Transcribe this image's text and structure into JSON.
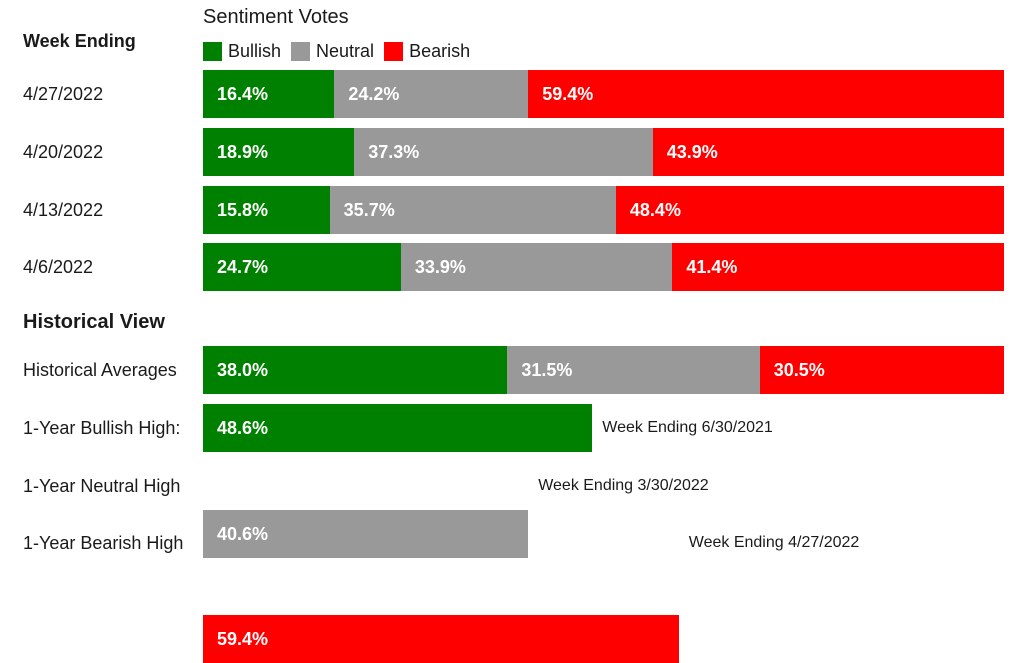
{
  "header": {
    "week_label": "Week Ending"
  },
  "legend": {
    "title": "Sentiment Votes",
    "items": [
      {
        "label": "Bullish",
        "color": "#008000"
      },
      {
        "label": "Neutral",
        "color": "#999999"
      },
      {
        "label": "Bearish",
        "color": "#ff0000"
      }
    ]
  },
  "historical": {
    "title": "Historical View"
  },
  "chart_data": {
    "type": "bar",
    "orientation": "horizontal",
    "stacked": true,
    "title": "Sentiment Votes",
    "legend_position": "top",
    "xlim": [
      0,
      100
    ],
    "series_colors": {
      "Bullish": "#008000",
      "Neutral": "#999999",
      "Bearish": "#ff0000"
    },
    "weeks": [
      {
        "label": "4/27/2022",
        "values": [
          16.4,
          24.2,
          59.4
        ],
        "display": [
          "16.4%",
          "24.2%",
          "59.4%"
        ]
      },
      {
        "label": "4/20/2022",
        "values": [
          18.9,
          37.3,
          43.9
        ],
        "display": [
          "18.9%",
          "37.3%",
          "43.9%"
        ]
      },
      {
        "label": "4/13/2022",
        "values": [
          15.8,
          35.7,
          48.4
        ],
        "display": [
          "15.8%",
          "35.7%",
          "48.4%"
        ]
      },
      {
        "label": "4/6/2022",
        "values": [
          24.7,
          33.9,
          41.4
        ],
        "display": [
          "24.7%",
          "33.9%",
          "41.4%"
        ]
      }
    ],
    "historical": [
      {
        "label": "Historical Averages",
        "values": [
          38.0,
          31.5,
          30.5
        ],
        "display": [
          "38.0%",
          "31.5%",
          "30.5%"
        ]
      },
      {
        "label": "1-Year Bullish High:",
        "series": "Bullish",
        "value": 48.6,
        "display": "48.6%",
        "note": "Week Ending 6/30/2021"
      },
      {
        "label": "1-Year Neutral High",
        "series": "Neutral",
        "value": 40.6,
        "display": "40.6%",
        "note": "Week Ending 3/30/2022"
      },
      {
        "label": "1-Year Bearish High",
        "series": "Bearish",
        "value": 59.4,
        "display": "59.4%",
        "note": "Week Ending 4/27/2022"
      }
    ]
  }
}
